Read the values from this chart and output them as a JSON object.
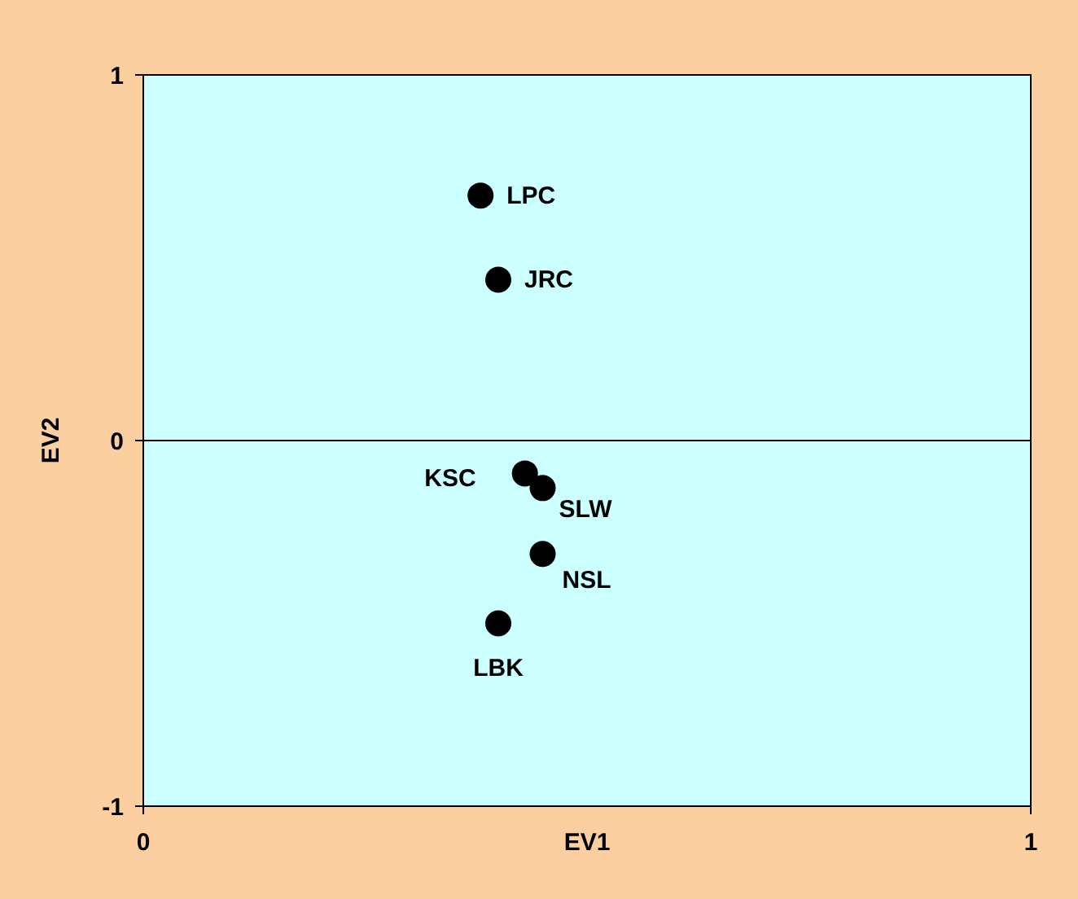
{
  "chart_data": {
    "type": "scatter",
    "xlabel": "EV1",
    "ylabel": "EV2",
    "xlim": [
      0,
      1
    ],
    "xticks": [
      0,
      1
    ],
    "ylim": [
      -1,
      1
    ],
    "yticks": [
      -1,
      0,
      1
    ],
    "x": [
      0.38,
      0.4,
      0.43,
      0.45,
      0.45,
      0.4
    ],
    "series": [
      {
        "color": "#000000",
        "values": [
          0.67,
          0.44,
          -0.09,
          -0.13,
          -0.31,
          -0.5
        ],
        "value_labels": [
          "LPC",
          "JRC",
          "KSC",
          "SLW",
          "NSL",
          "LBK"
        ]
      }
    ],
    "marker": "circle",
    "grid": false,
    "ref_lines": [
      {
        "axis": "y",
        "value": 0,
        "color": "#000000"
      }
    ]
  }
}
